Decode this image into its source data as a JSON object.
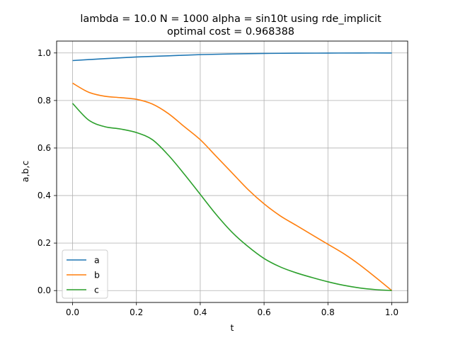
{
  "chart_data": {
    "type": "line",
    "title_line1": "lambda = 10.0 N = 1000 alpha = sin10t using rde_implicit",
    "title_line2": "optimal cost = 0.968388",
    "xlabel": "t",
    "ylabel": "a,b,c",
    "xlim": [
      -0.05,
      1.05
    ],
    "ylim": [
      -0.05,
      1.05
    ],
    "xticks": [
      0.0,
      0.2,
      0.4,
      0.6,
      0.8,
      1.0
    ],
    "xtick_labels": [
      "0.0",
      "0.2",
      "0.4",
      "0.6",
      "0.8",
      "1.0"
    ],
    "yticks": [
      0.0,
      0.2,
      0.4,
      0.6,
      0.8,
      1.0
    ],
    "ytick_labels": [
      "0.0",
      "0.2",
      "0.4",
      "0.6",
      "0.8",
      "1.0"
    ],
    "grid": true,
    "legend_position": "lower-left",
    "series": [
      {
        "name": "a",
        "color": "#1f77b4",
        "x": [
          0.0,
          0.1,
          0.2,
          0.3,
          0.4,
          0.5,
          0.6,
          0.7,
          0.8,
          0.9,
          1.0
        ],
        "y": [
          0.968,
          0.976,
          0.983,
          0.988,
          0.993,
          0.996,
          0.998,
          0.999,
          0.9995,
          1.0,
          1.0
        ]
      },
      {
        "name": "b",
        "color": "#ff7f0e",
        "x": [
          0.0,
          0.05,
          0.1,
          0.15,
          0.2,
          0.25,
          0.3,
          0.35,
          0.4,
          0.45,
          0.5,
          0.55,
          0.6,
          0.65,
          0.7,
          0.75,
          0.8,
          0.85,
          0.9,
          0.95,
          1.0
        ],
        "y": [
          0.873,
          0.835,
          0.818,
          0.812,
          0.805,
          0.785,
          0.745,
          0.69,
          0.635,
          0.565,
          0.495,
          0.425,
          0.365,
          0.315,
          0.275,
          0.235,
          0.195,
          0.155,
          0.108,
          0.055,
          0.0
        ]
      },
      {
        "name": "c",
        "color": "#2ca02c",
        "x": [
          0.0,
          0.05,
          0.1,
          0.15,
          0.2,
          0.25,
          0.3,
          0.35,
          0.4,
          0.45,
          0.5,
          0.55,
          0.6,
          0.65,
          0.7,
          0.75,
          0.8,
          0.85,
          0.9,
          0.95,
          1.0
        ],
        "y": [
          0.788,
          0.718,
          0.69,
          0.68,
          0.665,
          0.635,
          0.57,
          0.49,
          0.405,
          0.32,
          0.245,
          0.185,
          0.135,
          0.1,
          0.075,
          0.055,
          0.037,
          0.022,
          0.011,
          0.004,
          0.0
        ]
      }
    ]
  }
}
